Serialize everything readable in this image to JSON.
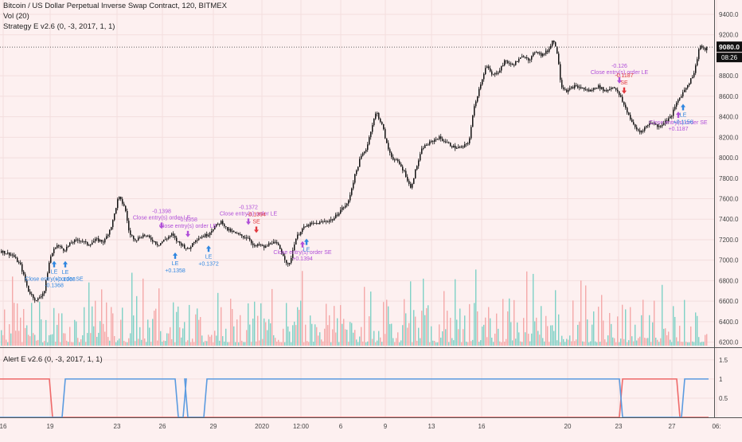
{
  "legend": {
    "title": "Bitcoin / US Dollar Perpetual Inverse Swap Contract, 120, BITMEX",
    "vol": "Vol (20)",
    "strategy": "Strategy E v2.6 (0, -3, 2017, 1, 1)",
    "alert": "Alert E v2.6 (0, -3, 2017, 1, 1)"
  },
  "colors": {
    "background": "#fdf0f0",
    "candle": "#111111",
    "vol_up": "#7fd1c6",
    "vol_down": "#f4a9a9",
    "alert_blue": "#5b9be0",
    "alert_red": "#ef6a6a",
    "signal_blue": "#2f86e0",
    "signal_purple": "#b04fd8",
    "signal_red": "#e0383e"
  },
  "price_tag": {
    "value": "9080.0",
    "time": "08:26"
  },
  "chart_data": {
    "type": "candlestick",
    "y_axis": {
      "ticks": [
        "9400.0",
        "9200.0",
        "8800.0",
        "8600.0",
        "8400.0",
        "8200.0",
        "8000.0",
        "7800.0",
        "7600.0",
        "7400.0",
        "7200.0",
        "7000.0",
        "6800.0",
        "6600.0",
        "6400.0",
        "6200.0"
      ],
      "tick_values": [
        9400,
        9200,
        8800,
        8600,
        8400,
        8200,
        8000,
        7800,
        7600,
        7400,
        7200,
        7000,
        6800,
        6600,
        6400,
        6200
      ],
      "range": [
        6150,
        9540
      ]
    },
    "x_axis": {
      "labels": [
        "16",
        "19",
        "23",
        "26",
        "29",
        "2020",
        "12:00",
        "6",
        "9",
        "13",
        "16",
        "20",
        "23",
        "27",
        "06:"
      ],
      "ticks_x": [
        4,
        63,
        147,
        204,
        268,
        329,
        378,
        428,
        484,
        542,
        605,
        713,
        777,
        844,
        900
      ]
    },
    "close_path": [
      [
        0,
        7090
      ],
      [
        15,
        7050
      ],
      [
        25,
        6950
      ],
      [
        35,
        6700
      ],
      [
        45,
        6600
      ],
      [
        55,
        6700
      ],
      [
        62,
        7020
      ],
      [
        70,
        7150
      ],
      [
        80,
        7100
      ],
      [
        90,
        7180
      ],
      [
        100,
        7200
      ],
      [
        110,
        7150
      ],
      [
        120,
        7200
      ],
      [
        130,
        7180
      ],
      [
        140,
        7350
      ],
      [
        148,
        7620
      ],
      [
        156,
        7520
      ],
      [
        162,
        7250
      ],
      [
        170,
        7200
      ],
      [
        180,
        7250
      ],
      [
        190,
        7200
      ],
      [
        198,
        7150
      ],
      [
        206,
        7200
      ],
      [
        215,
        7250
      ],
      [
        222,
        7180
      ],
      [
        228,
        7150
      ],
      [
        236,
        7100
      ],
      [
        244,
        7200
      ],
      [
        252,
        7230
      ],
      [
        260,
        7250
      ],
      [
        268,
        7320
      ],
      [
        278,
        7380
      ],
      [
        284,
        7300
      ],
      [
        290,
        7280
      ],
      [
        298,
        7250
      ],
      [
        305,
        7230
      ],
      [
        312,
        7220
      ],
      [
        318,
        7130
      ],
      [
        325,
        7150
      ],
      [
        332,
        7120
      ],
      [
        340,
        7180
      ],
      [
        348,
        7150
      ],
      [
        355,
        7050
      ],
      [
        362,
        6930
      ],
      [
        370,
        7200
      ],
      [
        378,
        7300
      ],
      [
        388,
        7350
      ],
      [
        398,
        7360
      ],
      [
        408,
        7380
      ],
      [
        418,
        7400
      ],
      [
        428,
        7500
      ],
      [
        436,
        7550
      ],
      [
        444,
        7800
      ],
      [
        452,
        8000
      ],
      [
        460,
        8100
      ],
      [
        466,
        8300
      ],
      [
        472,
        8450
      ],
      [
        480,
        8300
      ],
      [
        486,
        8100
      ],
      [
        492,
        8000
      ],
      [
        500,
        7950
      ],
      [
        508,
        7850
      ],
      [
        515,
        7700
      ],
      [
        522,
        7900
      ],
      [
        530,
        8100
      ],
      [
        540,
        8150
      ],
      [
        550,
        8200
      ],
      [
        560,
        8150
      ],
      [
        570,
        8100
      ],
      [
        580,
        8100
      ],
      [
        588,
        8150
      ],
      [
        595,
        8500
      ],
      [
        602,
        8700
      ],
      [
        610,
        8900
      ],
      [
        618,
        8800
      ],
      [
        626,
        8850
      ],
      [
        634,
        8950
      ],
      [
        642,
        8900
      ],
      [
        650,
        8950
      ],
      [
        658,
        9000
      ],
      [
        665,
        8950
      ],
      [
        672,
        9050
      ],
      [
        680,
        9000
      ],
      [
        688,
        9050
      ],
      [
        694,
        9160
      ],
      [
        700,
        9000
      ],
      [
        704,
        8700
      ],
      [
        712,
        8650
      ],
      [
        720,
        8700
      ],
      [
        730,
        8680
      ],
      [
        740,
        8650
      ],
      [
        750,
        8700
      ],
      [
        760,
        8650
      ],
      [
        770,
        8700
      ],
      [
        778,
        8600
      ],
      [
        784,
        8500
      ],
      [
        790,
        8400
      ],
      [
        796,
        8300
      ],
      [
        803,
        8250
      ],
      [
        810,
        8300
      ],
      [
        818,
        8350
      ],
      [
        826,
        8300
      ],
      [
        834,
        8350
      ],
      [
        842,
        8400
      ],
      [
        850,
        8550
      ],
      [
        858,
        8650
      ],
      [
        866,
        8750
      ],
      [
        872,
        8850
      ],
      [
        878,
        9100
      ],
      [
        884,
        9050
      ],
      [
        888,
        9080
      ]
    ],
    "signals": [
      {
        "x": 68,
        "kind": "up",
        "color": "blue",
        "label": "LE",
        "labels_above": [],
        "labels_below": [
          "Close entry(s) order SE",
          "-0.1368"
        ]
      },
      {
        "x": 82,
        "kind": "up",
        "color": "blue",
        "label": "LE",
        "labels_above": [],
        "labels_below": [
          "+0.1368"
        ]
      },
      {
        "x": 203,
        "kind": "down",
        "color": "purple",
        "label": "",
        "labels_above": [
          "-0.1398",
          "Close entry(s) order LE"
        ],
        "labels_below": []
      },
      {
        "x": 220,
        "kind": "up",
        "color": "blue",
        "label": "LE",
        "labels_above": [],
        "labels_below": [
          "+0.1358"
        ]
      },
      {
        "x": 236,
        "kind": "down",
        "color": "purple",
        "label": "",
        "labels_above": [
          "-0.1358",
          "Close entry(s) order LE"
        ],
        "labels_below": []
      },
      {
        "x": 262,
        "kind": "up",
        "color": "blue",
        "label": "LE",
        "labels_above": [],
        "labels_below": [
          "+0.1372"
        ]
      },
      {
        "x": 312,
        "kind": "down",
        "color": "purple",
        "label": "",
        "labels_above": [
          "-0.1372",
          "Close entry(s) order LE"
        ],
        "labels_below": []
      },
      {
        "x": 322,
        "kind": "down",
        "color": "red",
        "label": "SE",
        "labels_above": [
          "-0.1394"
        ],
        "labels_below": []
      },
      {
        "x": 380,
        "kind": "up",
        "color": "purple",
        "label": "",
        "labels_above": [],
        "labels_below": [
          "Close entry(s) order SE",
          "+0.1394"
        ]
      },
      {
        "x": 385,
        "kind": "up",
        "color": "blue",
        "label": "LE",
        "labels_above": [],
        "labels_below": []
      },
      {
        "x": 778,
        "kind": "down",
        "color": "purple",
        "label": "",
        "labels_above": [
          "-0.126",
          "Close entry(s) order LE"
        ],
        "labels_below": []
      },
      {
        "x": 784,
        "kind": "down",
        "color": "red",
        "label": "SE",
        "labels_above": [
          "-0.1187"
        ],
        "labels_below": []
      },
      {
        "x": 852,
        "kind": "up",
        "color": "purple",
        "label": "",
        "labels_above": [],
        "labels_below": [
          "Close entry(s) order SE",
          "+0.1187"
        ]
      },
      {
        "x": 858,
        "kind": "up",
        "color": "blue",
        "label": "LE",
        "labels_above": [],
        "labels_below": [
          "+0.1156"
        ]
      }
    ],
    "alert_panel": {
      "y_ticks": [
        "1.5",
        "1",
        "0.5"
      ],
      "y_tick_values": [
        1.5,
        1,
        0.5
      ],
      "blue_segments": [
        [
          0,
          0
        ],
        [
          80,
          1
        ],
        [
          222,
          0
        ],
        [
          232,
          1
        ],
        [
          234,
          0
        ],
        [
          258,
          1
        ],
        [
          780,
          0
        ],
        [
          858,
          1
        ],
        [
          888,
          1
        ]
      ],
      "red_segments": [
        [
          0,
          1
        ],
        [
          64,
          0
        ],
        [
          780,
          1
        ],
        [
          852,
          0
        ],
        [
          888,
          0
        ]
      ]
    }
  }
}
